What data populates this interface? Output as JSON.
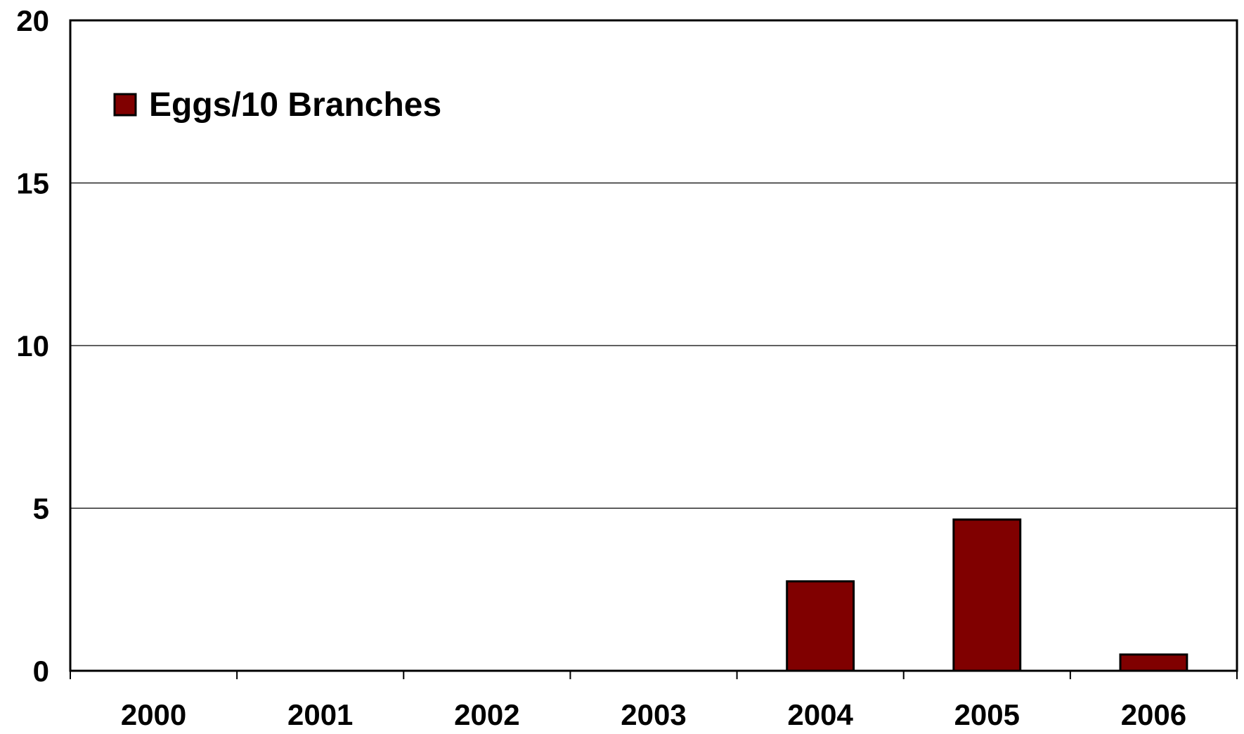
{
  "chart_data": {
    "type": "bar",
    "categories": [
      "2000",
      "2001",
      "2002",
      "2003",
      "2004",
      "2005",
      "2006"
    ],
    "series": [
      {
        "name": "Eggs/10 Branches",
        "values": [
          0,
          0,
          0,
          0,
          2.75,
          4.65,
          0.5
        ],
        "color": "#800000"
      }
    ],
    "yticks": [
      "0",
      "5",
      "10",
      "15",
      "20"
    ],
    "ylim": [
      0,
      20
    ],
    "grid": true,
    "legend_position": "top-left",
    "title": "",
    "xlabel": "",
    "ylabel": ""
  }
}
